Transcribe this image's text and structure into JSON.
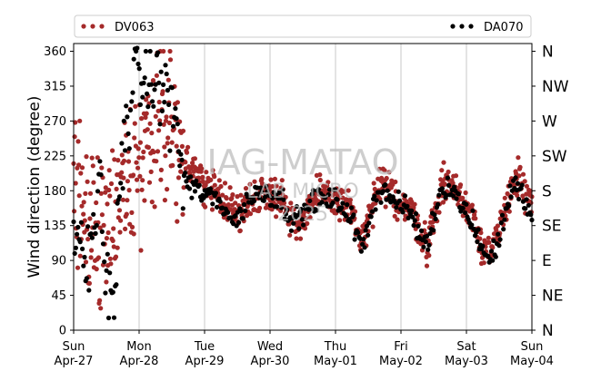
{
  "chart_data": {
    "type": "scatter",
    "title": "",
    "ylabel": "Wind direction (degree)",
    "xlabel": "",
    "ylim": [
      0,
      370
    ],
    "yticks": [
      0,
      45,
      90,
      135,
      180,
      225,
      270,
      315,
      360
    ],
    "right_axis_labels": [
      "N",
      "NE",
      "E",
      "SE",
      "S",
      "SW",
      "W",
      "NW",
      "N"
    ],
    "xlim": [
      "2025-04-27 00:00",
      "2025-05-04 00:00"
    ],
    "x_ticks": [
      {
        "day": "Sun",
        "date": "Apr-27"
      },
      {
        "day": "Mon",
        "date": "Apr-28"
      },
      {
        "day": "Tue",
        "date": "Apr-29"
      },
      {
        "day": "Wed",
        "date": "Apr-30"
      },
      {
        "day": "Thu",
        "date": "May-01"
      },
      {
        "day": "Fri",
        "date": "May-02"
      },
      {
        "day": "Sat",
        "date": "May-03"
      },
      {
        "day": "Sun",
        "date": "May-04"
      }
    ],
    "grid": "vertical lines at day boundaries",
    "legend_position": "top",
    "series": [
      {
        "name": "DV063",
        "color": "#a52a2a",
        "trend": [
          [
            0.0,
            170
          ],
          [
            0.1,
            160
          ],
          [
            0.2,
            150
          ],
          [
            0.3,
            140
          ],
          [
            0.4,
            130
          ],
          [
            0.5,
            140
          ],
          [
            0.6,
            160
          ],
          [
            0.7,
            180
          ],
          [
            0.8,
            200
          ],
          [
            0.9,
            195
          ],
          [
            1.0,
            215
          ],
          [
            1.1,
            240
          ],
          [
            1.2,
            265
          ],
          [
            1.3,
            280
          ],
          [
            1.4,
            285
          ],
          [
            1.5,
            275
          ],
          [
            1.6,
            240
          ],
          [
            1.7,
            215
          ],
          [
            1.8,
            205
          ],
          [
            1.9,
            195
          ],
          [
            2.0,
            190
          ],
          [
            2.1,
            180
          ],
          [
            2.2,
            175
          ],
          [
            2.3,
            170
          ],
          [
            2.4,
            160
          ],
          [
            2.5,
            150
          ],
          [
            2.6,
            155
          ],
          [
            2.7,
            170
          ],
          [
            2.8,
            175
          ],
          [
            2.9,
            178
          ],
          [
            3.0,
            180
          ],
          [
            3.1,
            175
          ],
          [
            3.2,
            168
          ],
          [
            3.3,
            150
          ],
          [
            3.4,
            135
          ],
          [
            3.5,
            145
          ],
          [
            3.6,
            160
          ],
          [
            3.7,
            170
          ],
          [
            3.8,
            172
          ],
          [
            3.9,
            170
          ],
          [
            4.0,
            168
          ],
          [
            4.1,
            165
          ],
          [
            4.2,
            160
          ],
          [
            4.3,
            140
          ],
          [
            4.4,
            110
          ],
          [
            4.5,
            140
          ],
          [
            4.6,
            170
          ],
          [
            4.7,
            185
          ],
          [
            4.8,
            180
          ],
          [
            4.9,
            170
          ],
          [
            5.0,
            165
          ],
          [
            5.1,
            158
          ],
          [
            5.2,
            150
          ],
          [
            5.3,
            125
          ],
          [
            5.4,
            110
          ],
          [
            5.5,
            140
          ],
          [
            5.6,
            180
          ],
          [
            5.7,
            195
          ],
          [
            5.8,
            185
          ],
          [
            5.9,
            170
          ],
          [
            6.0,
            160
          ],
          [
            6.1,
            150
          ],
          [
            6.2,
            120
          ],
          [
            6.3,
            105
          ],
          [
            6.4,
            100
          ],
          [
            6.5,
            125
          ],
          [
            6.6,
            160
          ],
          [
            6.7,
            190
          ],
          [
            6.8,
            195
          ],
          [
            6.9,
            175
          ],
          [
            7.0,
            155
          ]
        ]
      },
      {
        "name": "DA070",
        "color": "#000000",
        "trend": [
          [
            0.0,
            135
          ],
          [
            0.1,
            100
          ],
          [
            0.2,
            75
          ],
          [
            0.3,
            130
          ],
          [
            0.4,
            190
          ],
          [
            0.5,
            60
          ],
          [
            0.6,
            40
          ],
          [
            0.7,
            180
          ],
          [
            0.8,
            260
          ],
          [
            0.9,
            320
          ],
          [
            1.0,
            330
          ],
          [
            1.1,
            320
          ],
          [
            1.2,
            325
          ],
          [
            1.3,
            315
          ],
          [
            1.4,
            305
          ],
          [
            1.5,
            300
          ],
          [
            1.6,
            230
          ],
          [
            1.7,
            195
          ],
          [
            1.8,
            185
          ],
          [
            1.9,
            180
          ],
          [
            2.0,
            175
          ],
          [
            2.1,
            172
          ],
          [
            2.2,
            168
          ],
          [
            2.3,
            160
          ],
          [
            2.4,
            145
          ],
          [
            2.5,
            140
          ],
          [
            2.6,
            160
          ],
          [
            2.7,
            172
          ],
          [
            2.8,
            175
          ],
          [
            2.9,
            178
          ],
          [
            3.0,
            176
          ],
          [
            3.1,
            172
          ],
          [
            3.2,
            165
          ],
          [
            3.3,
            150
          ],
          [
            3.4,
            140
          ],
          [
            3.5,
            150
          ],
          [
            3.6,
            162
          ],
          [
            3.7,
            168
          ],
          [
            3.8,
            168
          ],
          [
            3.9,
            168
          ],
          [
            4.0,
            166
          ],
          [
            4.1,
            162
          ],
          [
            4.2,
            150
          ],
          [
            4.3,
            130
          ],
          [
            4.4,
            105
          ],
          [
            4.5,
            140
          ],
          [
            4.6,
            170
          ],
          [
            4.7,
            182
          ],
          [
            4.8,
            175
          ],
          [
            4.9,
            165
          ],
          [
            5.0,
            160
          ],
          [
            5.1,
            155
          ],
          [
            5.2,
            145
          ],
          [
            5.3,
            120
          ],
          [
            5.4,
            110
          ],
          [
            5.5,
            145
          ],
          [
            5.6,
            180
          ],
          [
            5.7,
            188
          ],
          [
            5.8,
            180
          ],
          [
            5.9,
            165
          ],
          [
            6.0,
            150
          ],
          [
            6.1,
            140
          ],
          [
            6.2,
            115
          ],
          [
            6.3,
            95
          ],
          [
            6.4,
            95
          ],
          [
            6.5,
            120
          ],
          [
            6.6,
            155
          ],
          [
            6.7,
            185
          ],
          [
            6.8,
            180
          ],
          [
            6.9,
            165
          ],
          [
            7.0,
            140
          ]
        ]
      }
    ],
    "watermark": [
      "IAG-MATAO",
      "LAB MICRO",
      "2025"
    ]
  }
}
